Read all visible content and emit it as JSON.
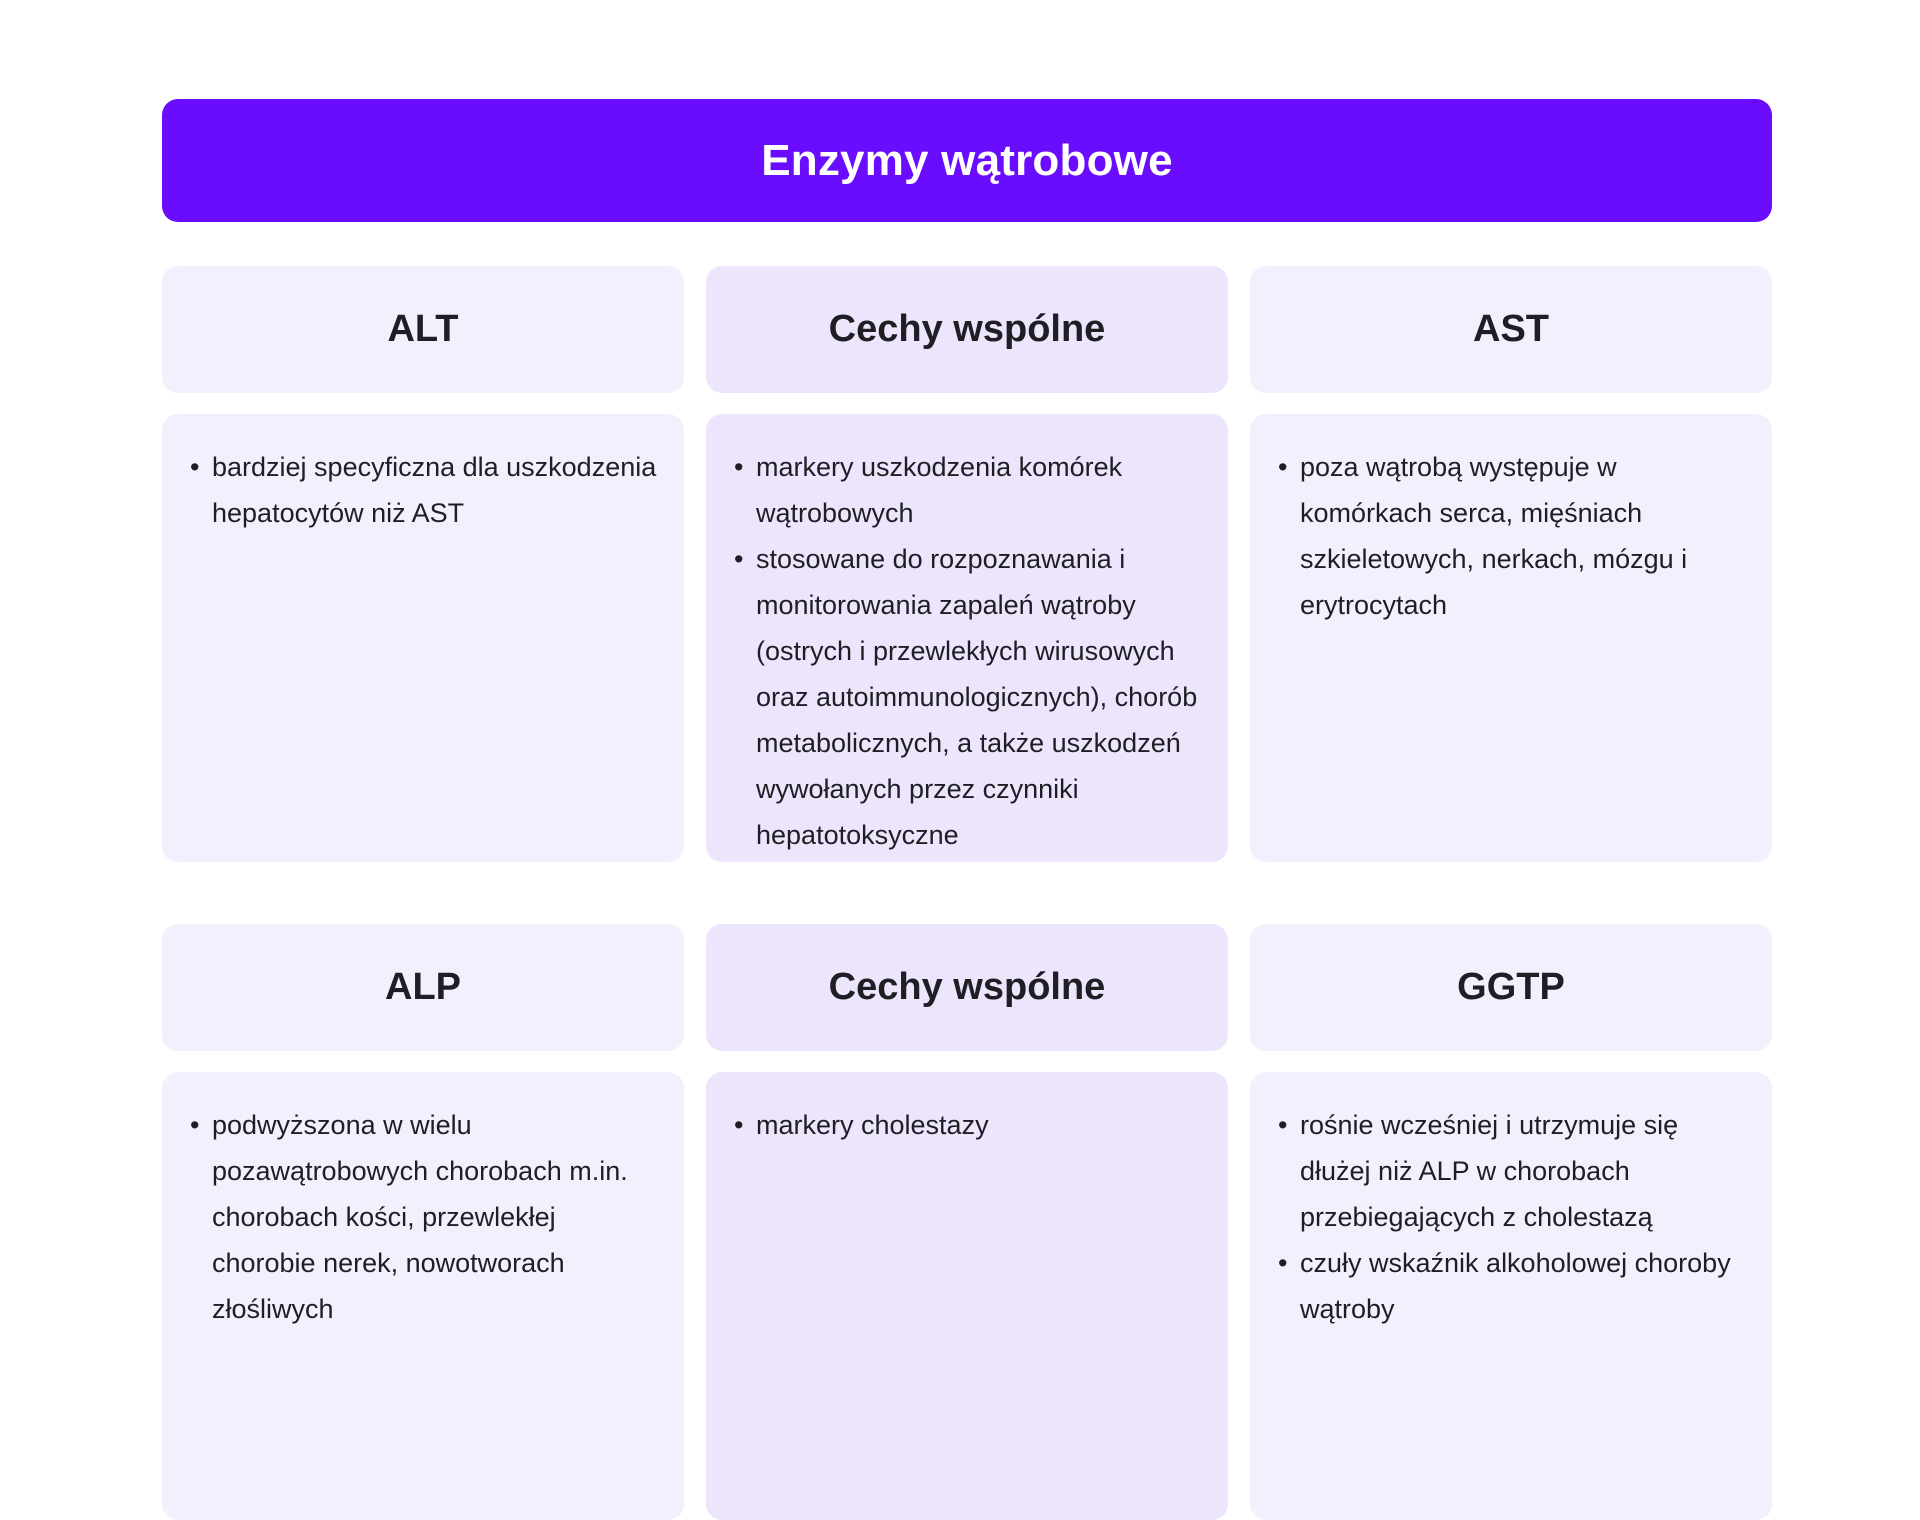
{
  "title": "Enzymy wątrobowe",
  "sections": [
    {
      "left": {
        "heading": "ALT",
        "points": [
          "bardziej specyficzna dla uszkodzenia hepatocytów niż AST"
        ]
      },
      "middle": {
        "heading": "Cechy wspólne",
        "points": [
          "markery uszkodzenia komórek wątrobowych",
          "stosowane do rozpoznawania i monitorowania zapaleń wątroby (ostrych i przewlekłych wirusowych oraz autoimmunologicznych), chorób metabolicznych, a także uszkodzeń wywołanych przez czynniki hepatotoksyczne"
        ]
      },
      "right": {
        "heading": "AST",
        "points": [
          "poza wątrobą występuje w komórkach serca, mięśniach szkieletowych, nerkach, mózgu i erytrocytach"
        ]
      }
    },
    {
      "left": {
        "heading": "ALP",
        "points": [
          "podwyższona w wielu pozawątrobowych chorobach m.in. chorobach kości, przewlekłej chorobie nerek, nowotworach złośliwych"
        ]
      },
      "middle": {
        "heading": "Cechy wspólne",
        "points": [
          "markery cholestazy"
        ]
      },
      "right": {
        "heading": "GGTP",
        "points": [
          "rośnie wcześniej i utrzymuje się dłużej niż ALP w chorobach przebiegających z cholestazą",
          "czuły wskaźnik alkoholowej choroby wątroby"
        ]
      }
    }
  ],
  "colors": {
    "title_bg": "#6a0dff",
    "side_cell_bg": "#f3f0fd",
    "middle_cell_bg": "#ede5fc",
    "text": "#1e1e24"
  }
}
